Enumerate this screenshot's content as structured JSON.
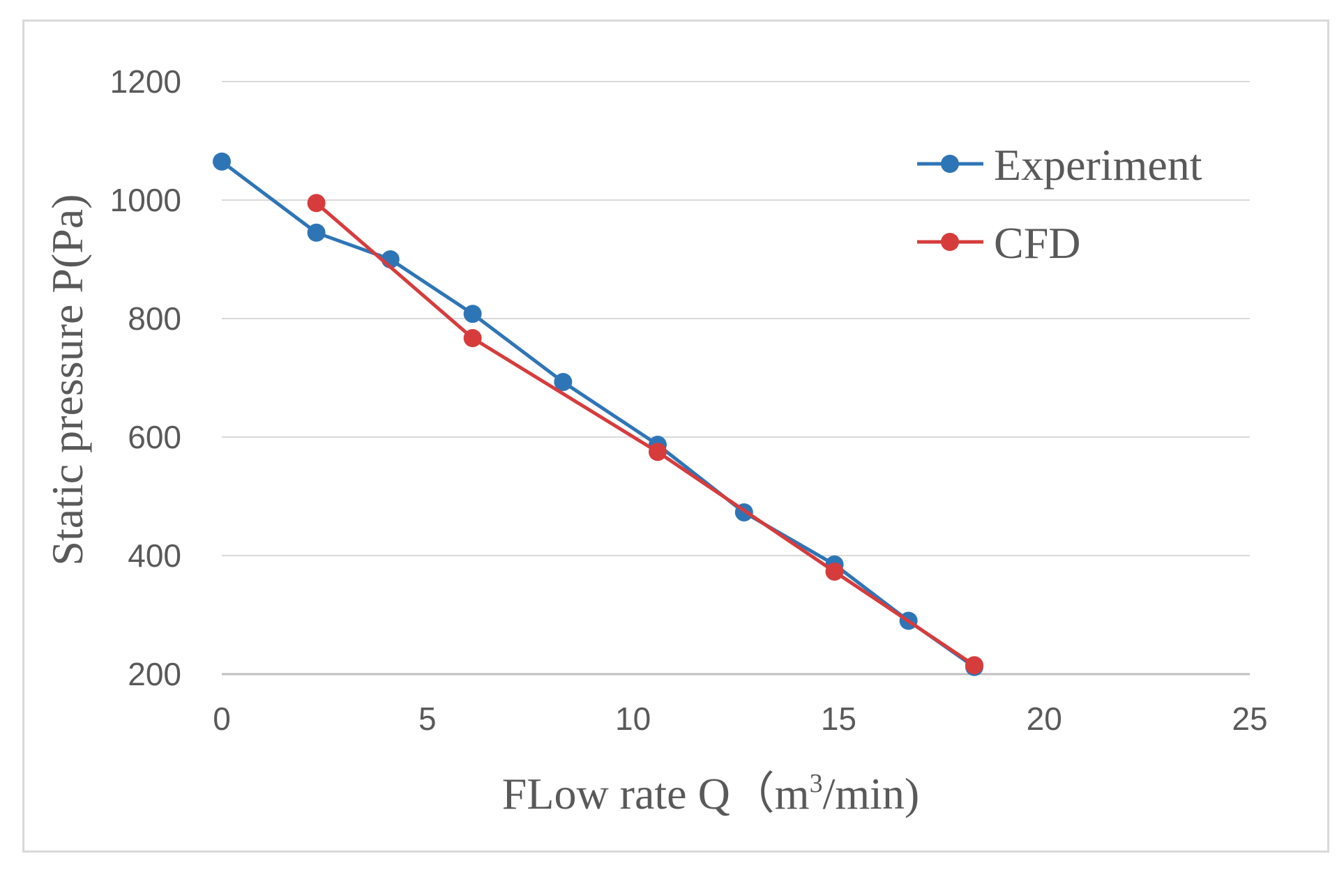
{
  "chart_data": {
    "type": "line",
    "title": "",
    "xlabel_main": "FLow rate Q（m",
    "xlabel_sup": "3",
    "xlabel_tail": "/min)",
    "ylabel": "Static pressure  P(Pa)",
    "xlim": [
      0,
      25
    ],
    "ylim": [
      200,
      1200
    ],
    "xticks": [
      0,
      5,
      10,
      15,
      20,
      25
    ],
    "yticks": [
      200,
      400,
      600,
      800,
      1000,
      1200
    ],
    "grid": "horizontal",
    "legend_position": "top-right",
    "series": [
      {
        "name": "Experiment",
        "color": "#2e75b6",
        "x": [
          0,
          2.3,
          4.1,
          6.1,
          8.3,
          10.6,
          12.7,
          14.9,
          16.7,
          18.3
        ],
        "y": [
          1065,
          945,
          900,
          808,
          693,
          587,
          473,
          385,
          290,
          212
        ]
      },
      {
        "name": "CFD",
        "color": "#d63c3c",
        "x": [
          2.3,
          6.1,
          10.6,
          14.9,
          18.3
        ],
        "y": [
          995,
          767,
          575,
          373,
          215
        ]
      }
    ]
  }
}
